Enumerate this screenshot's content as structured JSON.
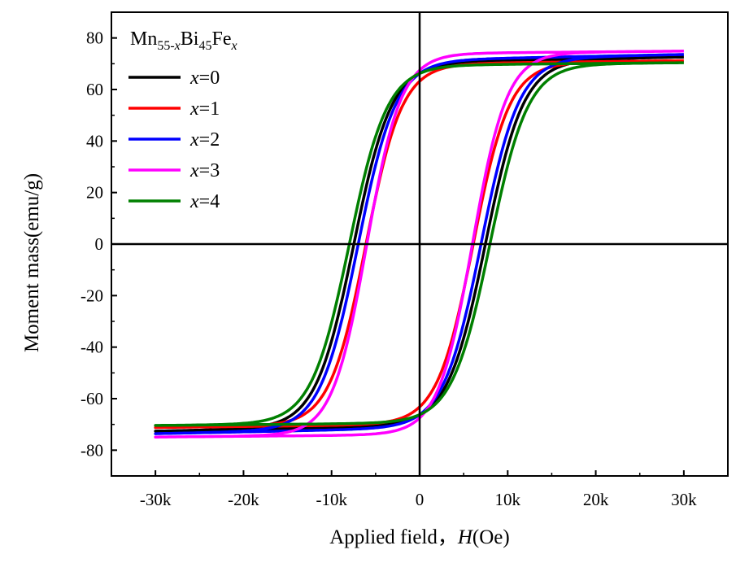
{
  "chart_data": {
    "type": "line",
    "title": "",
    "xlabel": "Applied field，",
    "xlabel_symbol": "H",
    "xlabel_unit": "(Oe)",
    "ylabel": "Moment mass(emu/g)",
    "xlim": [
      -35000,
      35000
    ],
    "ylim": [
      -90,
      90
    ],
    "x_ticks": [
      -30000,
      -20000,
      -10000,
      0,
      10000,
      20000,
      30000
    ],
    "x_tick_labels": [
      "-30k",
      "-20k",
      "-10k",
      "0",
      "10k",
      "20k",
      "30k"
    ],
    "y_ticks": [
      -80,
      -60,
      -40,
      -20,
      0,
      20,
      40,
      60,
      80
    ],
    "y_tick_labels": [
      "-80",
      "-60",
      "-40",
      "-20",
      "0",
      "20",
      "40",
      "60",
      "80"
    ],
    "grid": false,
    "zero_lines": true,
    "legend": {
      "position": "top-left",
      "title_parts": [
        "Mn",
        "55-",
        "x",
        "Bi",
        "45",
        "Fe",
        "x"
      ]
    },
    "series": [
      {
        "name": "x=0",
        "var": "x",
        "eq": "=0",
        "color": "#000000",
        "coercivity_oe": 7500,
        "saturation_emu_g": 70.5,
        "loop_width_oe": 4300,
        "slope_emu_g_per_koe": 0.07
      },
      {
        "name": "x=1",
        "var": "x",
        "eq": "=1",
        "color": "#ff0000",
        "coercivity_oe": 6100,
        "saturation_emu_g": 70.0,
        "loop_width_oe": 4100,
        "slope_emu_g_per_koe": 0.04
      },
      {
        "name": "x=2",
        "var": "x",
        "eq": "=2",
        "color": "#0000ff",
        "coercivity_oe": 7000,
        "saturation_emu_g": 71.5,
        "loop_width_oe": 4300,
        "slope_emu_g_per_koe": 0.07
      },
      {
        "name": "x=3",
        "var": "x",
        "eq": "=3",
        "color": "#ff00ff",
        "coercivity_oe": 6000,
        "saturation_emu_g": 74.0,
        "loop_width_oe": 3900,
        "slope_emu_g_per_koe": 0.03
      },
      {
        "name": "x=4",
        "var": "x",
        "eq": "=4",
        "color": "#008000",
        "coercivity_oe": 8000,
        "saturation_emu_g": 69.5,
        "loop_width_oe": 4300,
        "slope_emu_g_per_koe": 0.03
      }
    ]
  }
}
